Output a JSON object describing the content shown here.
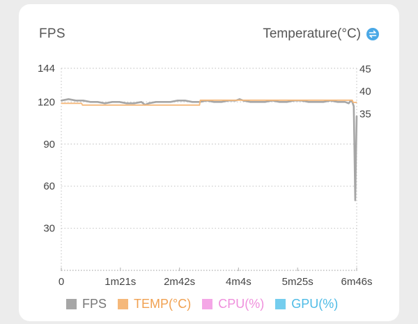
{
  "header": {
    "left_title": "FPS",
    "right_title": "Temperature(°C)"
  },
  "legend": [
    {
      "label": "FPS",
      "color": "#a6a6a6",
      "text_color": "#777777"
    },
    {
      "label": "TEMP(°C)",
      "color": "#f5b87a",
      "text_color": "#f0a050"
    },
    {
      "label": "CPU(%)",
      "color": "#f4a6e6",
      "text_color": "#ef8fdc"
    },
    {
      "label": "GPU(%)",
      "color": "#74cdee",
      "text_color": "#4dbbe6"
    }
  ],
  "chart_data": {
    "type": "line",
    "x_ticks": [
      "0",
      "1m21s",
      "2m42s",
      "4m4s",
      "5m25s",
      "6m46s"
    ],
    "x_range_seconds": [
      0,
      406
    ],
    "y_left": {
      "label": "FPS",
      "ticks": [
        30,
        60,
        90,
        120,
        144
      ],
      "range": [
        0,
        144
      ]
    },
    "y_right": {
      "label": "Temperature(°C)",
      "ticks": [
        35,
        40,
        45
      ],
      "range": [
        0,
        45
      ]
    },
    "series": [
      {
        "name": "FPS",
        "color": "#a6a6a6",
        "axis": "left",
        "x": [
          0,
          10,
          20,
          30,
          40,
          50,
          60,
          70,
          80,
          90,
          100,
          110,
          115,
          120,
          130,
          140,
          150,
          160,
          170,
          180,
          190,
          200,
          210,
          220,
          230,
          240,
          245,
          250,
          260,
          270,
          280,
          290,
          300,
          310,
          320,
          330,
          340,
          350,
          360,
          370,
          380,
          390,
          395,
          398,
          400,
          402,
          404,
          406
        ],
        "values": [
          121,
          122,
          121,
          121,
          120,
          120,
          119,
          120,
          120,
          119,
          119,
          120,
          118,
          119,
          120,
          120,
          120,
          121,
          121,
          120,
          120,
          121,
          120,
          120,
          121,
          121,
          122,
          121,
          120,
          120,
          120,
          121,
          120,
          120,
          121,
          121,
          120,
          120,
          120,
          121,
          120,
          120,
          119,
          121,
          120,
          117,
          50,
          110
        ]
      },
      {
        "name": "TEMP(°C)",
        "color": "#f5b87a",
        "axis": "right",
        "x": [
          0,
          28,
          29,
          190,
          191,
          400,
          401,
          406
        ],
        "values": [
          37.2,
          37.2,
          36.8,
          36.8,
          37.9,
          37.9,
          37.4,
          37.4
        ]
      }
    ]
  }
}
